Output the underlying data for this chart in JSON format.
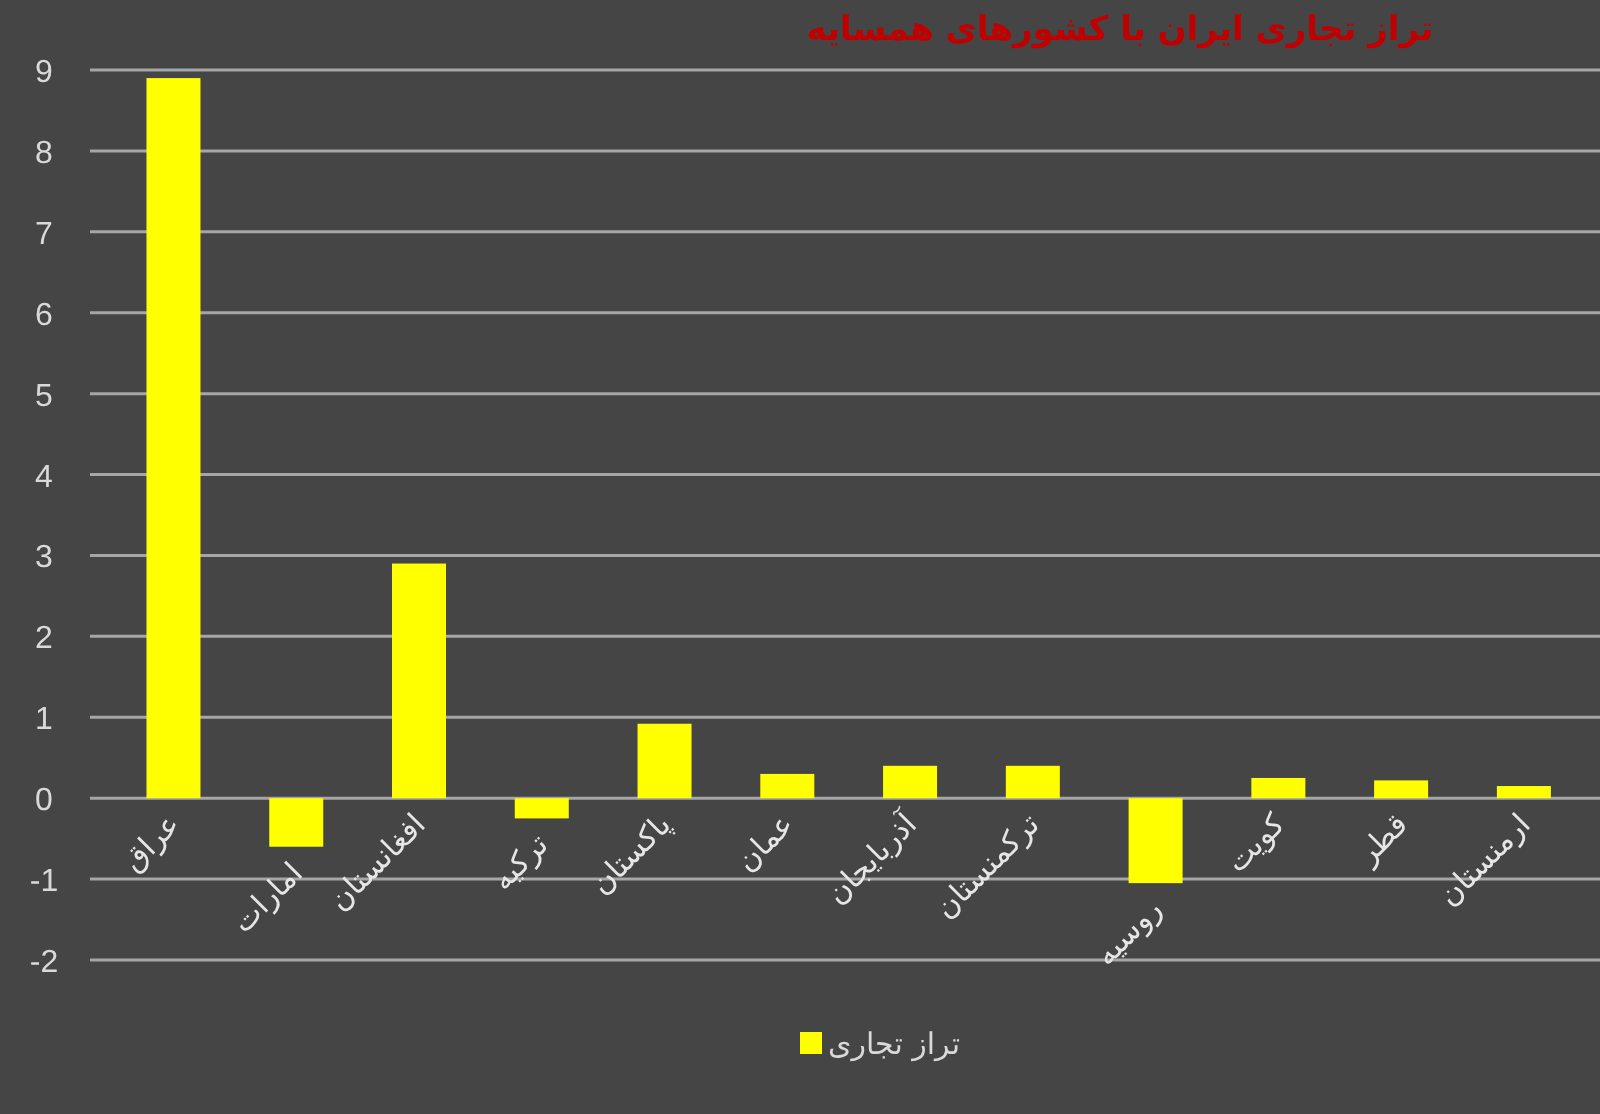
{
  "chart_data": {
    "type": "bar",
    "title": "تراز تجاری ایران با کشورهای همسایه",
    "categories": [
      "عراق",
      "امارات",
      "افغانستان",
      "ترکیه",
      "پاکستان",
      "عمان",
      "آذربایجان",
      "ترکمنستان",
      "روسیه",
      "کویت",
      "قطر",
      "ارمنستان"
    ],
    "series": [
      {
        "name": "تراز تجاری",
        "color": "#ffff00",
        "values": [
          8.9,
          -0.6,
          2.9,
          -0.25,
          0.92,
          0.3,
          0.4,
          0.4,
          -1.05,
          0.25,
          0.22,
          0.15
        ]
      }
    ],
    "ylim": [
      -2,
      9
    ],
    "yticks": [
      -2,
      -1,
      0,
      1,
      2,
      3,
      4,
      5,
      6,
      7,
      8,
      9
    ],
    "grid": "y",
    "legend": "bottom"
  }
}
